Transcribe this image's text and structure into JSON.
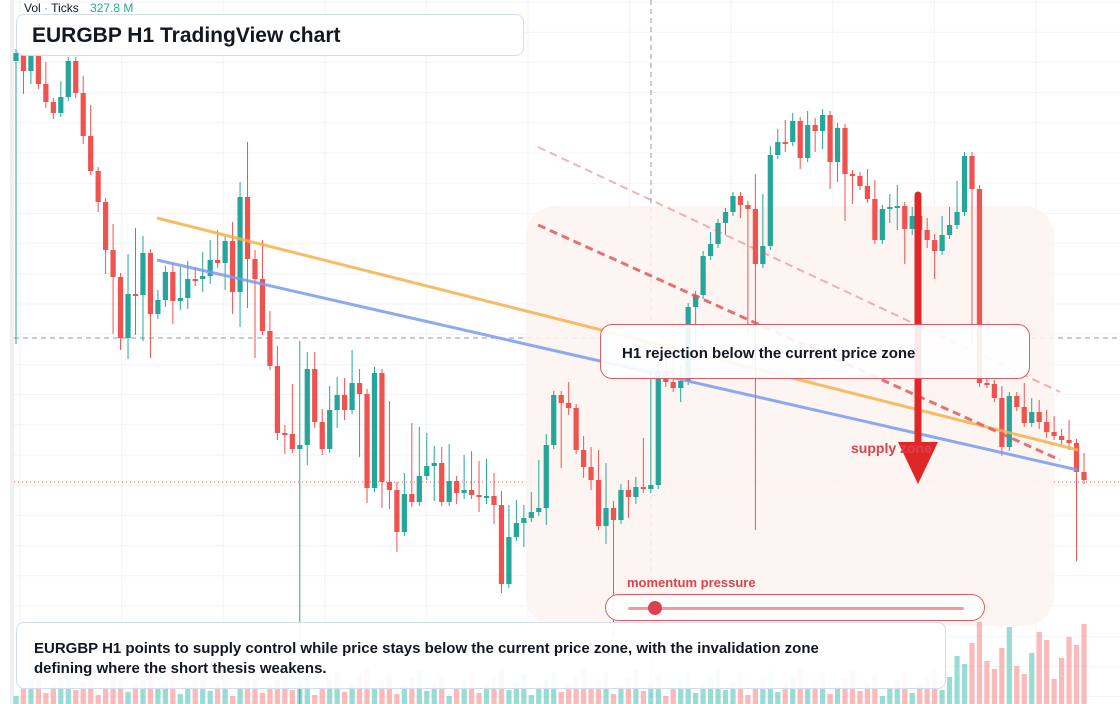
{
  "volume_legend": {
    "label": "Vol",
    "separator": "·",
    "unit": "Ticks",
    "value": "327.8 M"
  },
  "title": "EURGBP H1 TradingView chart",
  "callout": "H1 rejection below the current price zone",
  "zone_label": "supply zone",
  "momentum": {
    "label": "momentum pressure",
    "level": 0.08
  },
  "summary": "EURGBP H1 points to supply control while price stays below the current price zone, with the invalidation zone defining where the short thesis weakens.",
  "colors": {
    "up": "#26a69a",
    "down": "#ef5350",
    "up_volume": "#7fd3c8",
    "down_volume": "#f7a9a8",
    "resistance_line": "#f6b24c",
    "trend_line": "#7b9bf0",
    "channel_line": "#e05a66",
    "arrow": "#e02727",
    "zone_fill": "#fdf3ee"
  },
  "chart_data": {
    "type": "candlestick",
    "symbol": "EURGBP",
    "timeframe": "H1",
    "candles_hlc": [
      [
        72,
        340,
        53
      ],
      [
        90,
        53,
        71
      ],
      [
        80,
        54,
        54
      ],
      [
        85,
        78,
        84
      ],
      [
        104,
        66,
        102
      ],
      [
        115,
        102,
        113
      ],
      [
        108,
        85,
        97
      ],
      [
        70,
        61,
        61
      ],
      [
        94,
        69,
        93
      ],
      [
        140,
        80,
        136
      ],
      [
        171,
        109,
        171
      ],
      [
        208,
        180,
        202
      ],
      [
        270,
        210,
        250
      ],
      [
        330,
        228,
        277
      ],
      [
        346,
        282,
        338
      ],
      [
        355,
        258,
        294
      ],
      [
        331,
        232,
        295
      ],
      [
        337,
        240,
        253
      ],
      [
        354,
        264,
        314
      ],
      [
        315,
        294,
        300
      ],
      [
        303,
        270,
        272
      ],
      [
        320,
        267,
        301
      ],
      [
        306,
        271,
        298
      ],
      [
        305,
        265,
        279
      ],
      [
        282,
        271,
        279
      ],
      [
        288,
        256,
        276
      ],
      [
        280,
        244,
        260
      ],
      [
        264,
        234,
        263
      ],
      [
        286,
        240,
        241
      ],
      [
        310,
        226,
        292
      ],
      [
        323,
        186,
        197
      ],
      [
        304,
        146,
        259
      ],
      [
        354,
        254,
        279
      ],
      [
        330,
        244,
        331
      ],
      [
        365,
        315,
        366
      ],
      [
        436,
        350,
        433
      ],
      [
        450,
        429,
        434
      ],
      [
        438,
        388,
        449
      ],
      [
        704,
        345,
        445
      ],
      [
        461,
        356,
        369
      ],
      [
        424,
        356,
        422
      ],
      [
        451,
        413,
        449
      ],
      [
        430,
        390,
        410
      ],
      [
        424,
        381,
        395
      ],
      [
        416,
        382,
        410
      ],
      [
        367,
        354,
        383
      ],
      [
        453,
        373,
        394
      ],
      [
        499,
        393,
        488
      ],
      [
        480,
        371,
        373
      ],
      [
        504,
        395,
        482
      ],
      [
        505,
        405,
        490
      ],
      [
        548,
        486,
        532
      ],
      [
        531,
        477,
        494
      ],
      [
        503,
        427,
        502
      ],
      [
        481,
        431,
        476
      ],
      [
        452,
        437,
        466
      ],
      [
        497,
        450,
        463
      ],
      [
        451,
        456,
        502
      ],
      [
        501,
        448,
        481
      ],
      [
        500,
        480,
        493
      ],
      [
        495,
        459,
        490
      ],
      [
        464,
        455,
        495
      ],
      [
        508,
        465,
        497
      ],
      [
        500,
        463,
        496
      ],
      [
        520,
        477,
        505
      ],
      [
        589,
        495,
        584
      ],
      [
        580,
        509,
        537
      ],
      [
        531,
        504,
        523
      ],
      [
        543,
        509,
        518
      ],
      [
        516,
        496,
        512
      ],
      [
        510,
        464,
        508
      ],
      [
        521,
        438,
        445
      ],
      [
        440,
        395,
        395
      ],
      [
        464,
        398,
        403
      ],
      [
        411,
        386,
        408
      ],
      [
        432,
        410,
        450
      ],
      [
        474,
        440,
        467
      ],
      [
        486,
        451,
        480
      ],
      [
        522,
        454,
        526
      ],
      [
        540,
        467,
        508
      ],
      [
        633,
        505,
        520
      ],
      [
        514,
        488,
        490
      ],
      [
        514,
        484,
        497
      ],
      [
        500,
        481,
        487
      ],
      [
        487,
        442,
        489
      ],
      [
        423,
        375,
        485
      ],
      [
        395,
        365,
        371
      ],
      [
        383,
        352,
        382
      ],
      [
        356,
        350,
        388
      ],
      [
        398,
        370,
        381
      ],
      [
        375,
        336,
        307
      ],
      [
        346,
        313,
        295
      ],
      [
        287,
        255,
        256
      ],
      [
        255,
        236,
        244
      ],
      [
        243,
        228,
        223
      ],
      [
        231,
        216,
        212
      ],
      [
        209,
        200,
        196
      ],
      [
        214,
        209,
        205
      ],
      [
        330,
        214,
        209
      ],
      [
        526,
        178,
        264
      ],
      [
        257,
        198,
        246
      ],
      [
        190,
        150,
        155
      ],
      [
        133,
        138,
        142
      ],
      [
        148,
        124,
        142
      ],
      [
        132,
        117,
        121
      ],
      [
        165,
        121,
        158
      ],
      [
        143,
        115,
        125
      ],
      [
        148,
        122,
        131
      ],
      [
        145,
        113,
        115
      ],
      [
        185,
        150,
        162
      ],
      [
        178,
        127,
        128
      ],
      [
        217,
        128,
        174
      ],
      [
        200,
        181,
        176
      ],
      [
        186,
        176,
        186
      ],
      [
        173,
        193,
        199
      ],
      [
        229,
        184,
        240
      ],
      [
        227,
        210,
        209
      ],
      [
        219,
        198,
        207
      ],
      [
        226,
        189,
        206
      ],
      [
        260,
        209,
        229
      ],
      [
        231,
        211,
        216
      ],
      [
        228,
        210,
        230
      ],
      [
        244,
        222,
        240
      ],
      [
        275,
        238,
        251
      ],
      [
        246,
        220,
        235
      ],
      [
        211,
        213,
        225
      ],
      [
        210,
        185,
        212
      ],
      [
        185,
        157,
        156
      ],
      [
        339,
        177,
        189
      ],
      [
        321,
        202,
        383
      ],
      [
        378,
        380,
        384
      ],
      [
        384,
        389,
        398
      ],
      [
        452,
        390,
        447
      ],
      [
        435,
        396,
        396
      ],
      [
        398,
        399,
        407
      ],
      [
        395,
        387,
        423
      ],
      [
        402,
        402,
        412
      ],
      [
        404,
        425,
        422
      ],
      [
        434,
        414,
        432
      ],
      [
        426,
        420,
        436
      ],
      [
        441,
        433,
        440
      ],
      [
        446,
        424,
        443
      ],
      [
        557,
        461,
        472
      ],
      [
        470,
        457,
        480
      ]
    ],
    "volume_note": "volume bars present at bottom; green for up candles, red for down candles",
    "overlays": {
      "upper_trendline": "descending orange line across highs",
      "lower_trendline": "descending blue line",
      "channel": "dashed red descending channel",
      "supply_zone": "shaded area on right side",
      "arrow": "bearish red arrow pointing down"
    }
  }
}
